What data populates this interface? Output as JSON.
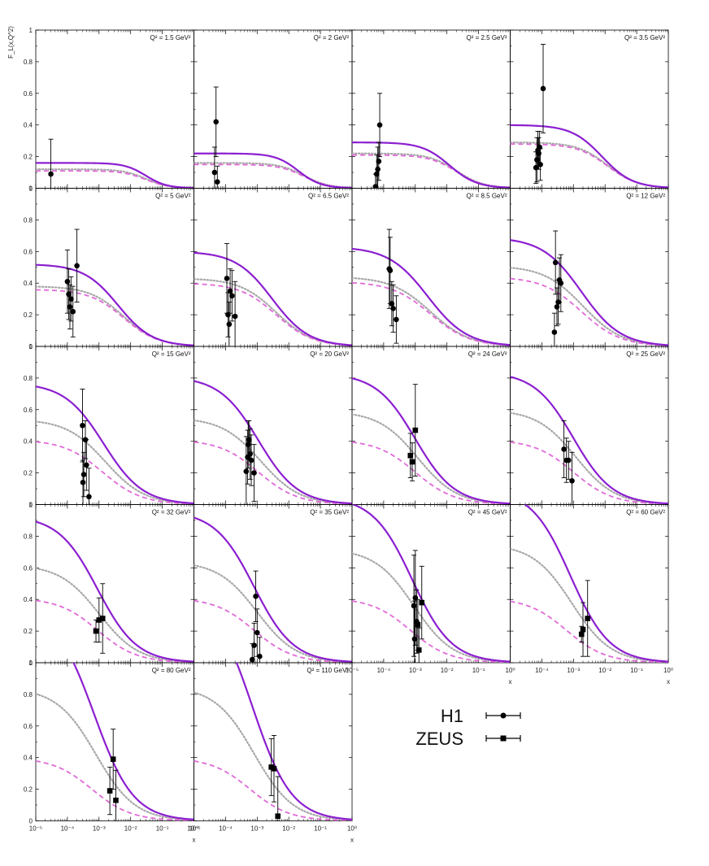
{
  "chart_data": {
    "type": "scatter",
    "title": "",
    "ylabel": "F_L(x,Q^2)",
    "xlabel": "x",
    "xscale": "log",
    "xlim": [
      1e-05,
      1
    ],
    "ylim": [
      0,
      1
    ],
    "y_ticks": [
      "0",
      "0.2",
      "0.4",
      "0.6",
      "0.8",
      "1"
    ],
    "x_tick_labels": [
      "10^-5",
      "10^-4",
      "10^-3",
      "10^-2",
      "10^-1",
      "10^0"
    ],
    "colors": {
      "curve_solid": "#8c1fd0",
      "curve_dotted": "#a8a8a8",
      "curve_dashed": "#e06ad8",
      "points": "#000000"
    },
    "legend": {
      "position": "bottom-right",
      "entries": [
        {
          "label": "H1",
          "marker": "circle"
        },
        {
          "label": "ZEUS",
          "marker": "square"
        }
      ]
    },
    "panels": [
      {
        "label": "Q² = 1.5 GeV²",
        "curves": {
          "solid": {
            "y0": 0.16,
            "x50": 0.03,
            "p": 1.3
          },
          "dotted": {
            "y0": 0.12,
            "x50": 0.03,
            "p": 1.2
          },
          "dashed": {
            "y0": 0.11,
            "x50": 0.03,
            "p": 1.2
          }
        },
        "h1": [
          {
            "x": 3e-05,
            "y": 0.09,
            "err": 0.22
          }
        ],
        "zeus": []
      },
      {
        "label": "Q² = 2 GeV²",
        "curves": {
          "solid": {
            "y0": 0.22,
            "x50": 0.02,
            "p": 1.2
          },
          "dotted": {
            "y0": 0.16,
            "x50": 0.03,
            "p": 1.1
          },
          "dashed": {
            "y0": 0.15,
            "x50": 0.03,
            "p": 1.1
          }
        },
        "h1": [
          {
            "x": 4.5e-05,
            "y": 0.1,
            "err": 0.16
          },
          {
            "x": 5e-05,
            "y": 0.42,
            "err": 0.22
          },
          {
            "x": 5.5e-05,
            "y": 0.04,
            "err": 0.1
          }
        ],
        "zeus": []
      },
      {
        "label": "Q² = 2.5 GeV²",
        "curves": {
          "solid": {
            "y0": 0.29,
            "x50": 0.012,
            "p": 1.0
          },
          "dotted": {
            "y0": 0.22,
            "x50": 0.02,
            "p": 1.0
          },
          "dashed": {
            "y0": 0.21,
            "x50": 0.02,
            "p": 1.0
          }
        },
        "h1": [
          {
            "x": 5.5e-05,
            "y": 0.01,
            "err": 0.08
          },
          {
            "x": 6e-05,
            "y": 0.09,
            "err": 0.12
          },
          {
            "x": 6.5e-05,
            "y": 0.12,
            "err": 0.14
          },
          {
            "x": 7e-05,
            "y": 0.17,
            "err": 0.12
          },
          {
            "x": 7.5e-05,
            "y": 0.4,
            "err": 0.2
          }
        ],
        "zeus": []
      },
      {
        "label": "Q² = 3.5 GeV²",
        "curves": {
          "solid": {
            "y0": 0.4,
            "x50": 0.008,
            "p": 0.9
          },
          "dotted": {
            "y0": 0.29,
            "x50": 0.012,
            "p": 0.9
          },
          "dashed": {
            "y0": 0.28,
            "x50": 0.012,
            "p": 0.9
          }
        },
        "h1": [
          {
            "x": 6.5e-05,
            "y": 0.13,
            "err": 0.1
          },
          {
            "x": 7e-05,
            "y": 0.18,
            "err": 0.14
          },
          {
            "x": 7.5e-05,
            "y": 0.24,
            "err": 0.12
          },
          {
            "x": 8e-05,
            "y": 0.22,
            "err": 0.1
          },
          {
            "x": 8.5e-05,
            "y": 0.26,
            "err": 0.1
          },
          {
            "x": 9e-05,
            "y": 0.15,
            "err": 0.1
          },
          {
            "x": 0.00011,
            "y": 0.63,
            "err": 0.28
          }
        ],
        "zeus": []
      },
      {
        "label": "Q² = 5 GeV²",
        "curves": {
          "solid": {
            "y0": 0.52,
            "x50": 0.004,
            "p": 0.8
          },
          "dotted": {
            "y0": 0.38,
            "x50": 0.006,
            "p": 0.8
          },
          "dashed": {
            "y0": 0.36,
            "x50": 0.006,
            "p": 0.8
          }
        },
        "h1": [
          {
            "x": 0.0001,
            "y": 0.41,
            "err": 0.2
          },
          {
            "x": 0.00011,
            "y": 0.33,
            "err": 0.16
          },
          {
            "x": 0.00012,
            "y": 0.25,
            "err": 0.14
          },
          {
            "x": 0.00013,
            "y": 0.3,
            "err": 0.14
          },
          {
            "x": 0.00015,
            "y": 0.22,
            "err": 0.16
          },
          {
            "x": 0.0002,
            "y": 0.51,
            "err": 0.23
          }
        ],
        "zeus": []
      },
      {
        "label": "Q² = 6.5 GeV²",
        "curves": {
          "solid": {
            "y0": 0.6,
            "x50": 0.003,
            "p": 0.75
          },
          "dotted": {
            "y0": 0.43,
            "x50": 0.004,
            "p": 0.75
          },
          "dashed": {
            "y0": 0.4,
            "x50": 0.004,
            "p": 0.75
          }
        },
        "h1": [
          {
            "x": 0.00011,
            "y": 0.43,
            "err": 0.22
          },
          {
            "x": 0.00012,
            "y": 0.2,
            "err": 0.14
          },
          {
            "x": 0.00013,
            "y": 0.14,
            "err": 0.14
          },
          {
            "x": 0.00014,
            "y": 0.35,
            "err": 0.14
          },
          {
            "x": 0.00016,
            "y": 0.32,
            "err": 0.16
          },
          {
            "x": 0.0002,
            "y": 0.19,
            "err": 0.22
          }
        ],
        "zeus": []
      },
      {
        "label": "Q² = 8.5 GeV²",
        "curves": {
          "solid": {
            "y0": 0.63,
            "x50": 0.0025,
            "p": 0.7
          },
          "dotted": {
            "y0": 0.44,
            "x50": 0.003,
            "p": 0.7
          },
          "dashed": {
            "y0": 0.41,
            "x50": 0.003,
            "p": 0.7
          }
        },
        "h1": [
          {
            "x": 0.00015,
            "y": 0.49,
            "err": 0.25
          },
          {
            "x": 0.00016,
            "y": 0.48,
            "err": 0.21
          },
          {
            "x": 0.00018,
            "y": 0.27,
            "err": 0.14
          },
          {
            "x": 0.0002,
            "y": 0.24,
            "err": 0.15
          },
          {
            "x": 0.00025,
            "y": 0.17,
            "err": 0.15
          }
        ],
        "zeus": []
      },
      {
        "label": "Q² = 12 GeV²",
        "curves": {
          "solid": {
            "y0": 0.69,
            "x50": 0.0018,
            "p": 0.7
          },
          "dotted": {
            "y0": 0.51,
            "x50": 0.002,
            "p": 0.7
          },
          "dashed": {
            "y0": 0.44,
            "x50": 0.0018,
            "p": 0.7
          }
        },
        "h1": [
          {
            "x": 0.00025,
            "y": 0.09,
            "err": 0.12
          },
          {
            "x": 0.00027,
            "y": 0.53,
            "err": 0.2
          },
          {
            "x": 0.0003,
            "y": 0.25,
            "err": 0.12
          },
          {
            "x": 0.00033,
            "y": 0.28,
            "err": 0.14
          },
          {
            "x": 0.00036,
            "y": 0.42,
            "err": 0.14
          },
          {
            "x": 0.0004,
            "y": 0.4,
            "err": 0.18
          }
        ],
        "zeus": []
      },
      {
        "label": "Q² = 15 GeV²",
        "curves": {
          "solid": {
            "y0": 0.77,
            "x50": 0.0014,
            "p": 0.7
          },
          "dotted": {
            "y0": 0.54,
            "x50": 0.0016,
            "p": 0.7
          },
          "dashed": {
            "y0": 0.41,
            "x50": 0.0013,
            "p": 0.7
          }
        },
        "h1": [
          {
            "x": 0.0003,
            "y": 0.5,
            "err": 0.23
          },
          {
            "x": 0.00031,
            "y": 0.14,
            "err": 0.14
          },
          {
            "x": 0.00033,
            "y": 0.19,
            "err": 0.14
          },
          {
            "x": 0.00037,
            "y": 0.41,
            "err": 0.12
          },
          {
            "x": 0.0004,
            "y": 0.25,
            "err": 0.16
          },
          {
            "x": 0.00048,
            "y": 0.05,
            "err": 0.18
          }
        ],
        "zeus": []
      },
      {
        "label": "Q² = 20 GeV²",
        "curves": {
          "solid": {
            "y0": 0.81,
            "x50": 0.0011,
            "p": 0.7
          },
          "dotted": {
            "y0": 0.55,
            "x50": 0.0013,
            "p": 0.7
          },
          "dashed": {
            "y0": 0.41,
            "x50": 0.0011,
            "p": 0.7
          }
        },
        "h1": [
          {
            "x": 0.00045,
            "y": 0.21,
            "err": 0.22
          },
          {
            "x": 0.0005,
            "y": 0.3,
            "err": 0.17
          },
          {
            "x": 0.00052,
            "y": 0.38,
            "err": 0.15
          },
          {
            "x": 0.00055,
            "y": 0.41,
            "err": 0.12
          },
          {
            "x": 0.0006,
            "y": 0.32,
            "err": 0.16
          },
          {
            "x": 0.00065,
            "y": 0.28,
            "err": 0.16
          },
          {
            "x": 0.0008,
            "y": 0.2,
            "err": 0.18
          }
        ],
        "zeus": []
      },
      {
        "label": "Q² = 24 GeV²",
        "curves": {
          "solid": {
            "y0": 0.83,
            "x50": 0.001,
            "p": 0.7
          },
          "dotted": {
            "y0": 0.59,
            "x50": 0.0012,
            "p": 0.7
          },
          "dashed": {
            "y0": 0.41,
            "x50": 0.001,
            "p": 0.7
          }
        },
        "h1": [],
        "zeus": [
          {
            "x": 0.0007,
            "y": 0.31,
            "err": 0.14
          },
          {
            "x": 0.0008,
            "y": 0.27,
            "err": 0.12
          },
          {
            "x": 0.001,
            "y": 0.47,
            "err": 0.29
          }
        ]
      },
      {
        "label": "Q² = 25 GeV²",
        "curves": {
          "solid": {
            "y0": 0.84,
            "x50": 0.001,
            "p": 0.7
          },
          "dotted": {
            "y0": 0.6,
            "x50": 0.0012,
            "p": 0.7
          },
          "dashed": {
            "y0": 0.41,
            "x50": 0.001,
            "p": 0.7
          }
        },
        "h1": [
          {
            "x": 0.0005,
            "y": 0.35,
            "err": 0.18
          },
          {
            "x": 0.0006,
            "y": 0.28,
            "err": 0.14
          },
          {
            "x": 0.0007,
            "y": 0.28,
            "err": 0.12
          },
          {
            "x": 0.0009,
            "y": 0.15,
            "err": 0.18
          }
        ],
        "zeus": []
      },
      {
        "label": "Q² = 32 GeV²",
        "curves": {
          "solid": {
            "y0": 0.93,
            "x50": 0.0009,
            "p": 0.7
          },
          "dotted": {
            "y0": 0.62,
            "x50": 0.001,
            "p": 0.7
          },
          "dashed": {
            "y0": 0.41,
            "x50": 0.0009,
            "p": 0.7
          }
        },
        "h1": [],
        "zeus": [
          {
            "x": 0.0008,
            "y": 0.2,
            "err": 0.07
          },
          {
            "x": 0.001,
            "y": 0.27,
            "err": 0.14
          },
          {
            "x": 0.0013,
            "y": 0.28,
            "err": 0.22
          }
        ]
      },
      {
        "label": "Q² = 35 GeV²",
        "curves": {
          "solid": {
            "y0": 0.96,
            "x50": 0.0008,
            "p": 0.7
          },
          "dotted": {
            "y0": 0.64,
            "x50": 0.001,
            "p": 0.7
          },
          "dashed": {
            "y0": 0.41,
            "x50": 0.0008,
            "p": 0.7
          }
        },
        "h1": [
          {
            "x": 0.0007,
            "y": 0.02,
            "err": 0.1
          },
          {
            "x": 0.0008,
            "y": 0.11,
            "err": 0.14
          },
          {
            "x": 0.0009,
            "y": 0.42,
            "err": 0.16
          },
          {
            "x": 0.001,
            "y": 0.19,
            "err": 0.15
          },
          {
            "x": 0.0012,
            "y": 0.04,
            "err": 0.12
          }
        ],
        "zeus": []
      },
      {
        "label": "Q² = 45 GeV²",
        "curves": {
          "solid": {
            "y0": 1.05,
            "x50": 0.0008,
            "p": 0.7
          },
          "dotted": {
            "y0": 0.72,
            "x50": 0.0009,
            "p": 0.7
          },
          "dashed": {
            "y0": 0.41,
            "x50": 0.0007,
            "p": 0.7
          }
        },
        "h1": [
          {
            "x": 0.0009,
            "y": 0.36,
            "err": 0.32
          },
          {
            "x": 0.00095,
            "y": 0.15,
            "err": 0.24
          },
          {
            "x": 0.001,
            "y": 0.41,
            "err": 0.3
          },
          {
            "x": 0.0011,
            "y": 0.26,
            "err": 0.2
          }
        ],
        "zeus": [
          {
            "x": 0.0012,
            "y": 0.24,
            "err": 0.16
          },
          {
            "x": 0.0013,
            "y": 0.08,
            "err": 0.14
          },
          {
            "x": 0.0016,
            "y": 0.38,
            "err": 0.23
          }
        ]
      },
      {
        "label": "Q² = 60 GeV²",
        "curves": {
          "solid": {
            "y0": 1.1,
            "x50": 0.0008,
            "p": 0.7
          },
          "dotted": {
            "y0": 0.75,
            "x50": 0.0009,
            "p": 0.7
          },
          "dashed": {
            "y0": 0.41,
            "x50": 0.0006,
            "p": 0.7
          }
        },
        "h1": [],
        "zeus": [
          {
            "x": 0.0018,
            "y": 0.18,
            "err": 0.05
          },
          {
            "x": 0.002,
            "y": 0.21,
            "err": 0.17
          },
          {
            "x": 0.0028,
            "y": 0.28,
            "err": 0.24
          }
        ]
      },
      {
        "label": "Q² = 80 GeV²",
        "curves": {
          "solid": {
            "y0": 1.35,
            "x50": 0.0007,
            "p": 0.7
          },
          "dotted": {
            "y0": 0.84,
            "x50": 0.0008,
            "p": 0.7
          },
          "dashed": {
            "y0": 0.4,
            "x50": 0.0006,
            "p": 0.7
          }
        },
        "h1": [],
        "zeus": [
          {
            "x": 0.0022,
            "y": 0.19,
            "err": 0.15
          },
          {
            "x": 0.0028,
            "y": 0.39,
            "err": 0.19
          },
          {
            "x": 0.0034,
            "y": 0.13,
            "err": 0.19
          }
        ]
      },
      {
        "label": "Q² = 110 GeV²",
        "curves": {
          "solid": {
            "y0": 1.45,
            "x50": 0.0007,
            "p": 0.7
          },
          "dotted": {
            "y0": 0.85,
            "x50": 0.0008,
            "p": 0.7
          },
          "dashed": {
            "y0": 0.4,
            "x50": 0.0006,
            "p": 0.7
          }
        },
        "h1": [],
        "zeus": [
          {
            "x": 0.0028,
            "y": 0.34,
            "err": 0.18
          },
          {
            "x": 0.0034,
            "y": 0.33,
            "err": 0.21
          },
          {
            "x": 0.0045,
            "y": 0.03,
            "err": 0.25
          }
        ]
      }
    ]
  }
}
